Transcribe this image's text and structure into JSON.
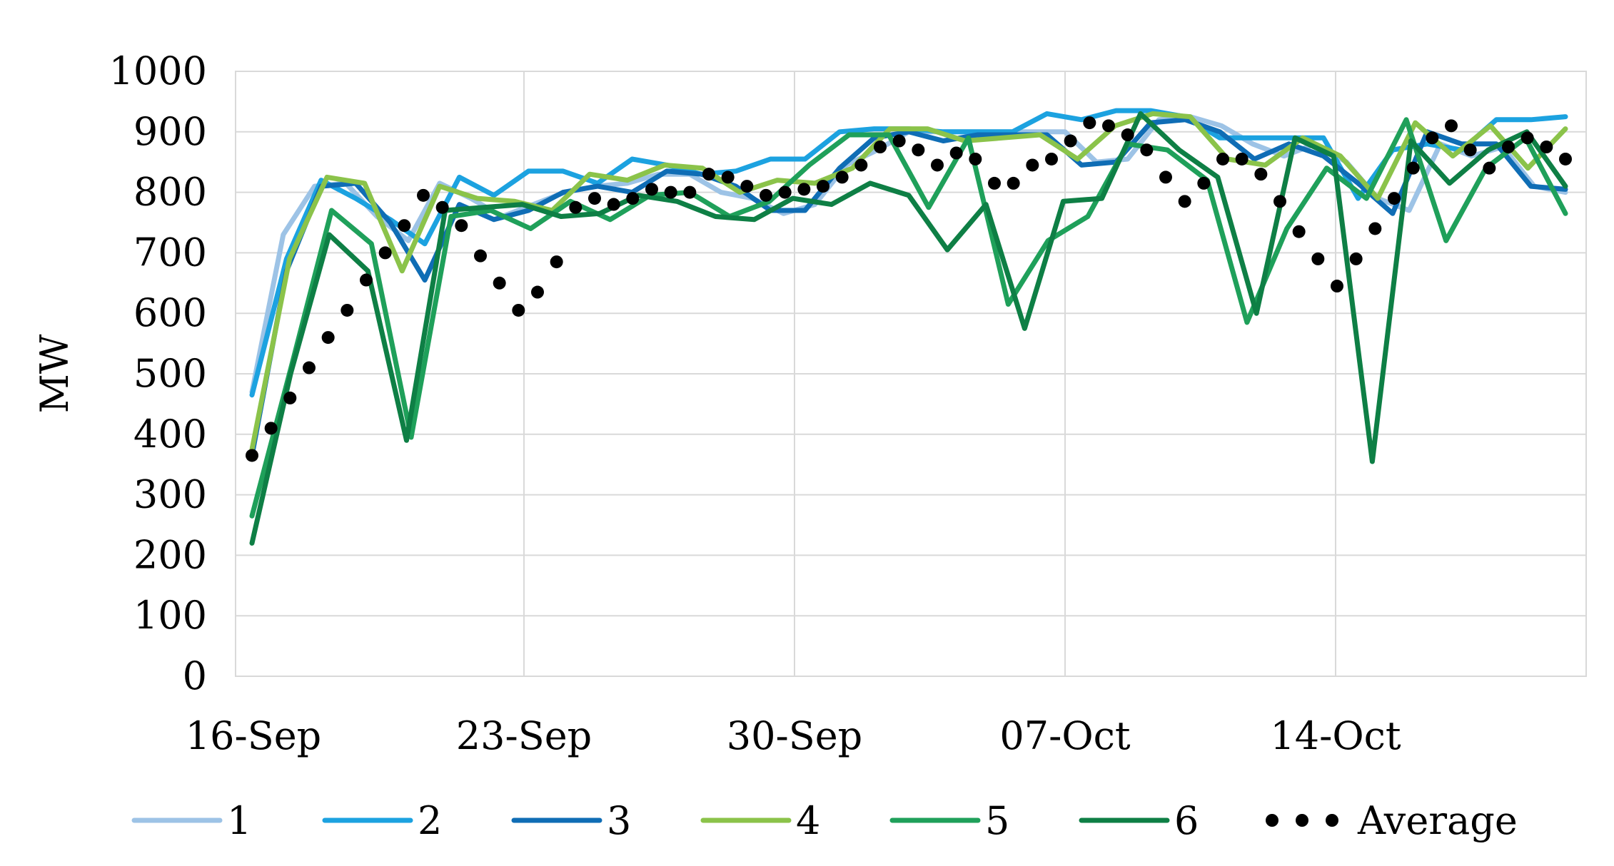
{
  "chart_data": {
    "type": "line",
    "title": "",
    "xlabel": "",
    "ylabel": "MW",
    "ylim": [
      0,
      1000
    ],
    "yticks": [
      "0",
      "100",
      "200",
      "300",
      "400",
      "500",
      "600",
      "700",
      "800",
      "900",
      "1000"
    ],
    "x_start": "16-Sep",
    "x_end": "19-Oct",
    "xticks": [
      "16-Sep",
      "23-Sep",
      "30-Sep",
      "07-Oct",
      "14-Oct"
    ],
    "grid": true,
    "legend_position": "bottom",
    "series": [
      {
        "name": "1",
        "color": "#9DC3E6",
        "style": "solid",
        "values": [
          470,
          730,
          810,
          815,
          760,
          720,
          815,
          790,
          760,
          780,
          800,
          810,
          815,
          830,
          830,
          800,
          790,
          765,
          780,
          845,
          870,
          900,
          900,
          900,
          900,
          900,
          900,
          850,
          855,
          920,
          925,
          910,
          880,
          860,
          880,
          850,
          790,
          770,
          880,
          860,
          875,
          810,
          800
        ]
      },
      {
        "name": "2",
        "color": "#1CA2E0",
        "style": "solid",
        "values": [
          465,
          690,
          820,
          790,
          755,
          715,
          825,
          795,
          835,
          835,
          815,
          855,
          845,
          830,
          835,
          855,
          855,
          900,
          905,
          905,
          900,
          900,
          900,
          930,
          920,
          935,
          935,
          925,
          890,
          890,
          890,
          890,
          790,
          870,
          880,
          870,
          920,
          920,
          925
        ]
      },
      {
        "name": "3",
        "color": "#0F6DB5",
        "style": "solid",
        "values": [
          365,
          670,
          810,
          815,
          750,
          655,
          780,
          755,
          770,
          800,
          810,
          800,
          835,
          830,
          810,
          770,
          770,
          840,
          890,
          900,
          885,
          895,
          895,
          895,
          845,
          850,
          915,
          920,
          900,
          855,
          880,
          860,
          815,
          765,
          900,
          880,
          880,
          810,
          805
        ]
      },
      {
        "name": "4",
        "color": "#8BC34A",
        "style": "solid",
        "values": [
          375,
          690,
          825,
          815,
          670,
          810,
          790,
          785,
          770,
          830,
          820,
          845,
          840,
          800,
          820,
          815,
          840,
          905,
          905,
          885,
          890,
          895,
          855,
          910,
          930,
          925,
          855,
          845,
          890,
          860,
          790,
          915,
          860,
          910,
          840,
          905
        ]
      },
      {
        "name": "5",
        "color": "#1FA05A",
        "style": "solid",
        "values": [
          265,
          515,
          770,
          715,
          395,
          760,
          770,
          740,
          785,
          755,
          795,
          800,
          760,
          785,
          845,
          895,
          895,
          775,
          890,
          615,
          720,
          760,
          880,
          870,
          820,
          585,
          740,
          840,
          790,
          920,
          720,
          840,
          890,
          765
        ]
      },
      {
        "name": "6",
        "color": "#0E7F45",
        "style": "solid",
        "values": [
          220,
          500,
          730,
          670,
          390,
          770,
          775,
          780,
          760,
          765,
          795,
          785,
          760,
          755,
          790,
          780,
          815,
          795,
          705,
          780,
          575,
          785,
          790,
          930,
          870,
          825,
          600,
          890,
          860,
          355,
          885,
          815,
          870,
          900,
          810
        ]
      },
      {
        "name": "Average",
        "color": "#000000",
        "style": "dotted",
        "values": [
          365,
          410,
          460,
          510,
          560,
          605,
          655,
          700,
          745,
          795,
          775,
          745,
          695,
          650,
          605,
          635,
          685,
          775,
          790,
          780,
          790,
          805,
          800,
          800,
          830,
          825,
          810,
          795,
          800,
          805,
          810,
          825,
          845,
          875,
          885,
          870,
          845,
          865,
          855,
          815,
          815,
          845,
          855,
          885,
          915,
          910,
          895,
          870,
          825,
          785,
          815,
          855,
          855,
          830,
          785,
          735,
          690,
          645,
          690,
          740,
          790,
          840,
          890,
          910,
          870,
          840,
          875,
          890,
          875,
          855
        ]
      }
    ]
  }
}
